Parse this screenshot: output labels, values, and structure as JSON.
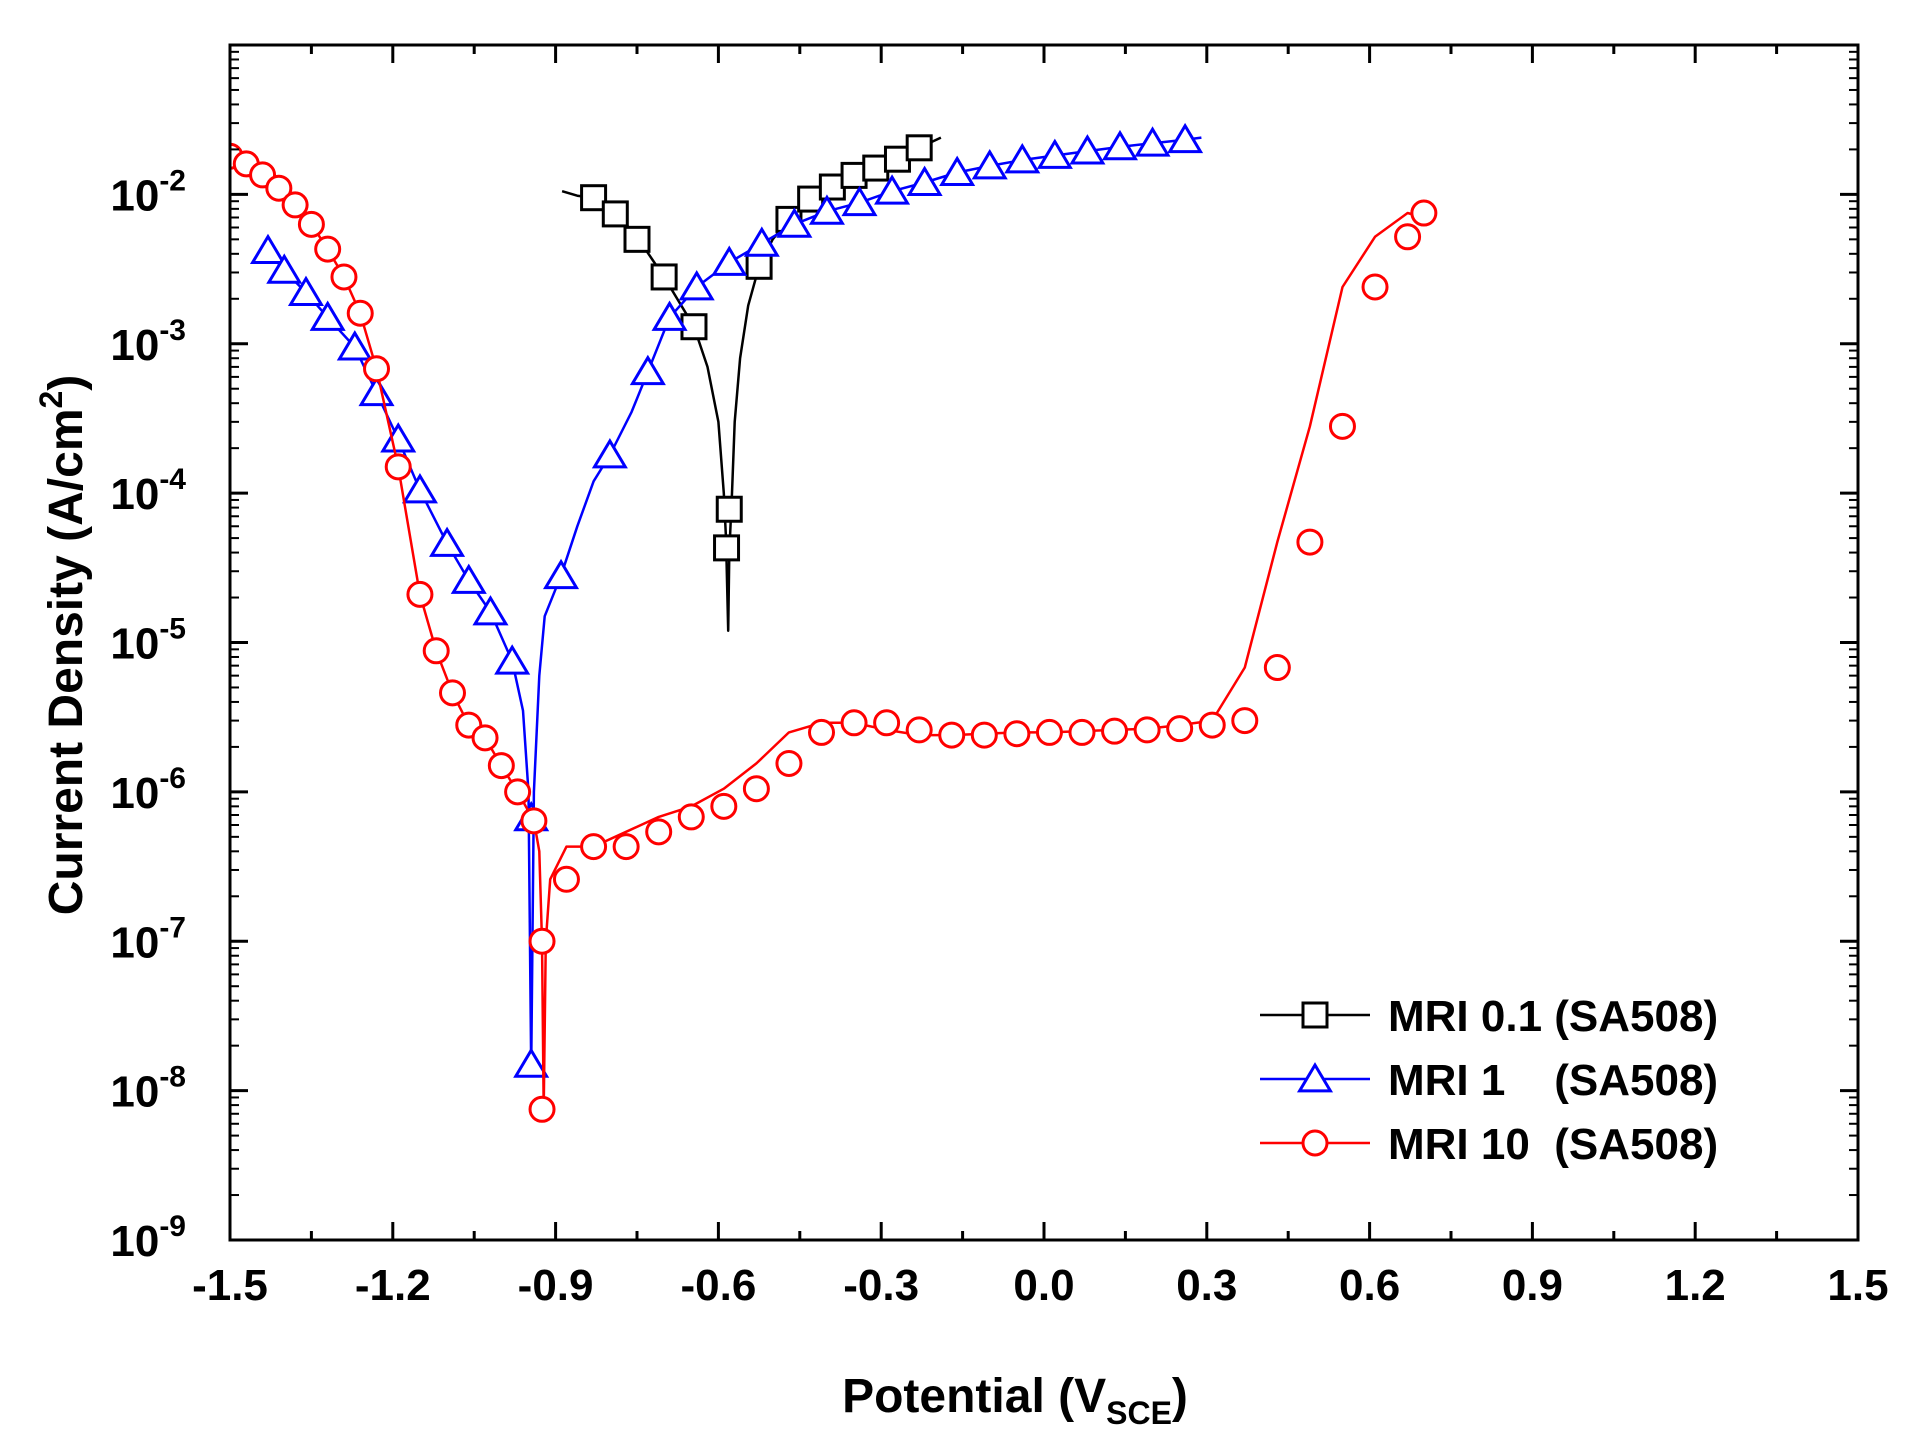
{
  "chart_data": {
    "type": "line",
    "xlabel": {
      "main": "Potential (V",
      "sub": "SCE",
      "close": ")"
    },
    "ylabel": {
      "main": "Current Density (A/cm",
      "sup": "2",
      "close": ")"
    },
    "xlim": [
      -1.5,
      1.5
    ],
    "ylim": [
      1e-09,
      0.1
    ],
    "yscale": "log",
    "xticks": [
      -1.5,
      -1.2,
      -0.9,
      -0.6,
      -0.3,
      0.0,
      0.3,
      0.6,
      0.9,
      1.2,
      1.5
    ],
    "xtick_labels": [
      "-1.5",
      "-1.2",
      "-0.9",
      "-0.6",
      "-0.3",
      "0.0",
      "0.3",
      "0.6",
      "0.9",
      "1.2",
      "1.5"
    ],
    "yticks": [
      {
        "base": "10",
        "exp": "-2",
        "value": 0.01
      },
      {
        "base": "10",
        "exp": "-3",
        "value": 0.001
      },
      {
        "base": "10",
        "exp": "-4",
        "value": 0.0001
      },
      {
        "base": "10",
        "exp": "-5",
        "value": 1e-05
      },
      {
        "base": "10",
        "exp": "-6",
        "value": 1e-06
      },
      {
        "base": "10",
        "exp": "-7",
        "value": 1e-07
      },
      {
        "base": "10",
        "exp": "-8",
        "value": 1e-08
      },
      {
        "base": "10",
        "exp": "-9",
        "value": 1e-09
      }
    ],
    "grid": false,
    "legend_position": "bottom-right",
    "series": [
      {
        "name": "MRI 0.1 (SA508)",
        "color": "#000000",
        "marker": "square",
        "line": [
          [
            -0.888,
            0.0105
          ],
          [
            -0.86,
            0.0098
          ],
          [
            -0.83,
            0.0095
          ],
          [
            -0.79,
            0.0076
          ],
          [
            -0.75,
            0.0052
          ],
          [
            -0.7,
            0.0028
          ],
          [
            -0.645,
            0.0013
          ],
          [
            -0.62,
            0.0007
          ],
          [
            -0.6,
            0.0003
          ],
          [
            -0.59,
            0.0001
          ],
          [
            -0.586,
            5e-05
          ],
          [
            -0.582,
            1.2e-05
          ],
          [
            -0.58,
            4e-05
          ],
          [
            -0.575,
            0.0001
          ],
          [
            -0.57,
            0.0003
          ],
          [
            -0.56,
            0.0008
          ],
          [
            -0.545,
            0.0018
          ],
          [
            -0.525,
            0.0033
          ],
          [
            -0.5,
            0.005
          ],
          [
            -0.47,
            0.0068
          ],
          [
            -0.43,
            0.0093
          ],
          [
            -0.39,
            0.0115
          ],
          [
            -0.35,
            0.0135
          ],
          [
            -0.31,
            0.0152
          ],
          [
            -0.27,
            0.0172
          ],
          [
            -0.23,
            0.0205
          ],
          [
            -0.19,
            0.024
          ]
        ],
        "markers": [
          [
            -0.83,
            0.0095
          ],
          [
            -0.79,
            0.0074
          ],
          [
            -0.75,
            0.005
          ],
          [
            -0.7,
            0.0028
          ],
          [
            -0.645,
            0.0013
          ],
          [
            -0.585,
            4.3e-05
          ],
          [
            -0.58,
            7.8e-05
          ],
          [
            -0.525,
            0.0033
          ],
          [
            -0.47,
            0.0068
          ],
          [
            -0.43,
            0.0093
          ],
          [
            -0.39,
            0.0112
          ],
          [
            -0.35,
            0.0134
          ],
          [
            -0.31,
            0.015
          ],
          [
            -0.27,
            0.0172
          ],
          [
            -0.23,
            0.0205
          ]
        ]
      },
      {
        "name": "MRI 1    (SA508)",
        "color": "#0000ff",
        "marker": "triangle",
        "line": [
          [
            -1.43,
            0.0042
          ],
          [
            -1.4,
            0.0031
          ],
          [
            -1.36,
            0.0022
          ],
          [
            -1.32,
            0.0015
          ],
          [
            -1.27,
            0.00095
          ],
          [
            -1.23,
            0.00047
          ],
          [
            -1.19,
            0.00023
          ],
          [
            -1.15,
            0.000105
          ],
          [
            -1.1,
            4.6e-05
          ],
          [
            -1.06,
            2.6e-05
          ],
          [
            -1.02,
            1.6e-05
          ],
          [
            -0.98,
            7.5e-06
          ],
          [
            -0.96,
            3.5e-06
          ],
          [
            -0.95,
            1e-06
          ],
          [
            -0.945,
            1.4e-08
          ],
          [
            -0.94,
            1e-06
          ],
          [
            -0.93,
            6e-06
          ],
          [
            -0.92,
            1.5e-05
          ],
          [
            -0.89,
            2.8e-05
          ],
          [
            -0.86,
            6e-05
          ],
          [
            -0.83,
            0.00012
          ],
          [
            -0.8,
            0.00018
          ],
          [
            -0.76,
            0.00035
          ],
          [
            -0.73,
            0.00065
          ],
          [
            -0.69,
            0.0015
          ],
          [
            -0.64,
            0.0024
          ],
          [
            -0.58,
            0.0035
          ],
          [
            -0.52,
            0.0047
          ],
          [
            -0.46,
            0.0063
          ],
          [
            -0.4,
            0.0077
          ],
          [
            -0.34,
            0.0088
          ],
          [
            -0.28,
            0.0105
          ],
          [
            -0.22,
            0.012
          ],
          [
            -0.16,
            0.014
          ],
          [
            -0.1,
            0.0155
          ],
          [
            -0.04,
            0.017
          ],
          [
            0.02,
            0.0182
          ],
          [
            0.08,
            0.0195
          ],
          [
            0.14,
            0.0208
          ],
          [
            0.2,
            0.022
          ],
          [
            0.26,
            0.0232
          ],
          [
            0.29,
            0.024
          ]
        ],
        "markers": [
          [
            -1.43,
            0.0042
          ],
          [
            -1.4,
            0.0031
          ],
          [
            -1.36,
            0.0022
          ],
          [
            -1.32,
            0.0015
          ],
          [
            -1.27,
            0.00095
          ],
          [
            -1.23,
            0.00047
          ],
          [
            -1.19,
            0.00023
          ],
          [
            -1.15,
            0.000105
          ],
          [
            -1.1,
            4.6e-05
          ],
          [
            -1.06,
            2.6e-05
          ],
          [
            -1.02,
            1.6e-05
          ],
          [
            -0.98,
            7.5e-06
          ],
          [
            -0.945,
            6.7e-07
          ],
          [
            -0.945,
            1.5e-08
          ],
          [
            -0.89,
            2.8e-05
          ],
          [
            -0.8,
            0.00018
          ],
          [
            -0.73,
            0.00065
          ],
          [
            -0.69,
            0.0015
          ],
          [
            -0.64,
            0.0024
          ],
          [
            -0.58,
            0.0035
          ],
          [
            -0.52,
            0.0047
          ],
          [
            -0.46,
            0.0063
          ],
          [
            -0.4,
            0.0077
          ],
          [
            -0.34,
            0.0088
          ],
          [
            -0.28,
            0.0105
          ],
          [
            -0.22,
            0.012
          ],
          [
            -0.16,
            0.014
          ],
          [
            -0.1,
            0.0155
          ],
          [
            -0.04,
            0.017
          ],
          [
            0.02,
            0.0182
          ],
          [
            0.08,
            0.0195
          ],
          [
            0.14,
            0.0208
          ],
          [
            0.2,
            0.022
          ],
          [
            0.26,
            0.0232
          ]
        ]
      },
      {
        "name": "MRI 10  (SA508)",
        "color": "#ff0000",
        "marker": "circle",
        "line": [
          [
            -1.5,
            0.018
          ],
          [
            -1.47,
            0.016
          ],
          [
            -1.44,
            0.0135
          ],
          [
            -1.41,
            0.011
          ],
          [
            -1.38,
            0.0085
          ],
          [
            -1.35,
            0.0063
          ],
          [
            -1.32,
            0.0043
          ],
          [
            -1.29,
            0.0028
          ],
          [
            -1.26,
            0.0016
          ],
          [
            -1.23,
            0.00068
          ],
          [
            -1.19,
            0.00015
          ],
          [
            -1.15,
            2.1e-05
          ],
          [
            -1.12,
            8.8e-06
          ],
          [
            -1.09,
            4.6e-06
          ],
          [
            -1.06,
            2.8e-06
          ],
          [
            -1.03,
            2.3e-06
          ],
          [
            -1.0,
            1.5e-06
          ],
          [
            -0.97,
            1e-06
          ],
          [
            -0.94,
            6.4e-07
          ],
          [
            -0.93,
            4e-07
          ],
          [
            -0.925,
            1e-07
          ],
          [
            -0.922,
            7.5e-09
          ],
          [
            -0.918,
            1e-07
          ],
          [
            -0.91,
            2.6e-07
          ],
          [
            -0.88,
            4.3e-07
          ],
          [
            -0.83,
            4.3e-07
          ],
          [
            -0.77,
            5.4e-07
          ],
          [
            -0.71,
            6.8e-07
          ],
          [
            -0.65,
            8e-07
          ],
          [
            -0.59,
            1.05e-06
          ],
          [
            -0.53,
            1.55e-06
          ],
          [
            -0.47,
            2.5e-06
          ],
          [
            -0.41,
            2.9e-06
          ],
          [
            -0.35,
            2.9e-06
          ],
          [
            -0.29,
            2.6e-06
          ],
          [
            -0.23,
            2.4e-06
          ],
          [
            -0.17,
            2.4e-06
          ],
          [
            -0.11,
            2.45e-06
          ],
          [
            -0.05,
            2.5e-06
          ],
          [
            0.01,
            2.5e-06
          ],
          [
            0.07,
            2.55e-06
          ],
          [
            0.13,
            2.6e-06
          ],
          [
            0.19,
            2.65e-06
          ],
          [
            0.25,
            2.8e-06
          ],
          [
            0.31,
            3e-06
          ],
          [
            0.37,
            6.8e-06
          ],
          [
            0.43,
            4.7e-05
          ],
          [
            0.49,
            0.00028
          ],
          [
            0.55,
            0.0024
          ],
          [
            0.61,
            0.0052
          ],
          [
            0.67,
            0.0075
          ],
          [
            0.7,
            0.007
          ]
        ],
        "markers": [
          [
            -1.5,
            0.018
          ],
          [
            -1.47,
            0.016
          ],
          [
            -1.44,
            0.0135
          ],
          [
            -1.41,
            0.011
          ],
          [
            -1.38,
            0.0085
          ],
          [
            -1.35,
            0.0063
          ],
          [
            -1.32,
            0.0043
          ],
          [
            -1.29,
            0.0028
          ],
          [
            -1.26,
            0.0016
          ],
          [
            -1.23,
            0.00068
          ],
          [
            -1.19,
            0.00015
          ],
          [
            -1.15,
            2.1e-05
          ],
          [
            -1.12,
            8.8e-06
          ],
          [
            -1.09,
            4.6e-06
          ],
          [
            -1.06,
            2.8e-06
          ],
          [
            -1.03,
            2.3e-06
          ],
          [
            -1.0,
            1.5e-06
          ],
          [
            -0.97,
            1e-06
          ],
          [
            -0.94,
            6.4e-07
          ],
          [
            -0.925,
            1e-07
          ],
          [
            -0.925,
            7.5e-09
          ],
          [
            -0.88,
            2.6e-07
          ],
          [
            -0.83,
            4.3e-07
          ],
          [
            -0.77,
            4.3e-07
          ],
          [
            -0.71,
            5.4e-07
          ],
          [
            -0.65,
            6.8e-07
          ],
          [
            -0.59,
            8e-07
          ],
          [
            -0.53,
            1.05e-06
          ],
          [
            -0.47,
            1.55e-06
          ],
          [
            -0.41,
            2.5e-06
          ],
          [
            -0.35,
            2.9e-06
          ],
          [
            -0.29,
            2.9e-06
          ],
          [
            -0.23,
            2.6e-06
          ],
          [
            -0.17,
            2.4e-06
          ],
          [
            -0.11,
            2.4e-06
          ],
          [
            -0.05,
            2.45e-06
          ],
          [
            0.01,
            2.5e-06
          ],
          [
            0.07,
            2.5e-06
          ],
          [
            0.13,
            2.55e-06
          ],
          [
            0.19,
            2.6e-06
          ],
          [
            0.25,
            2.65e-06
          ],
          [
            0.31,
            2.8e-06
          ],
          [
            0.37,
            3e-06
          ],
          [
            0.43,
            6.8e-06
          ],
          [
            0.49,
            4.7e-05
          ],
          [
            0.55,
            0.00028
          ],
          [
            0.61,
            0.0024
          ],
          [
            0.67,
            0.0052
          ],
          [
            0.7,
            0.0075
          ]
        ]
      }
    ]
  }
}
